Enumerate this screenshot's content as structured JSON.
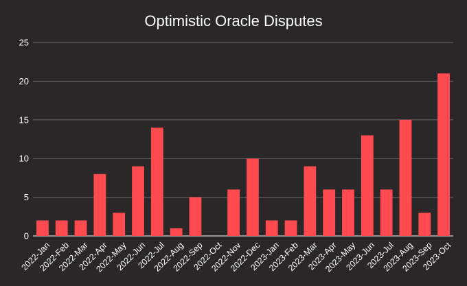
{
  "chart_data": {
    "type": "bar",
    "title": "Optimistic Oracle Disputes",
    "xlabel": "",
    "ylabel": "",
    "categories": [
      "2022-Jan",
      "2022-Feb",
      "2022-Mar",
      "2022-Apr",
      "2022-May",
      "2022-Jun",
      "2022-Jul",
      "2022-Aug",
      "2022-Sep",
      "2022-Oct",
      "2022-Nov",
      "2022-Dec",
      "2023-Jan",
      "2023-Feb",
      "2023-Mar",
      "2023-Apr",
      "2023-May",
      "2023-Jun",
      "2023-Jul",
      "2023-Aug",
      "2023-Sep",
      "2023-Oct"
    ],
    "values": [
      2,
      2,
      2,
      8,
      3,
      9,
      14,
      1,
      5,
      0,
      6,
      10,
      2,
      2,
      9,
      6,
      6,
      13,
      6,
      15,
      3,
      21
    ],
    "ylim": [
      0,
      25
    ],
    "yticks": [
      0,
      5,
      10,
      15,
      20,
      25
    ],
    "grid": true,
    "legend": "none",
    "colors": {
      "bar": "#ff4a4f",
      "background": "#2a2729",
      "grid": "#6b686a",
      "text": "#ffffff"
    }
  }
}
